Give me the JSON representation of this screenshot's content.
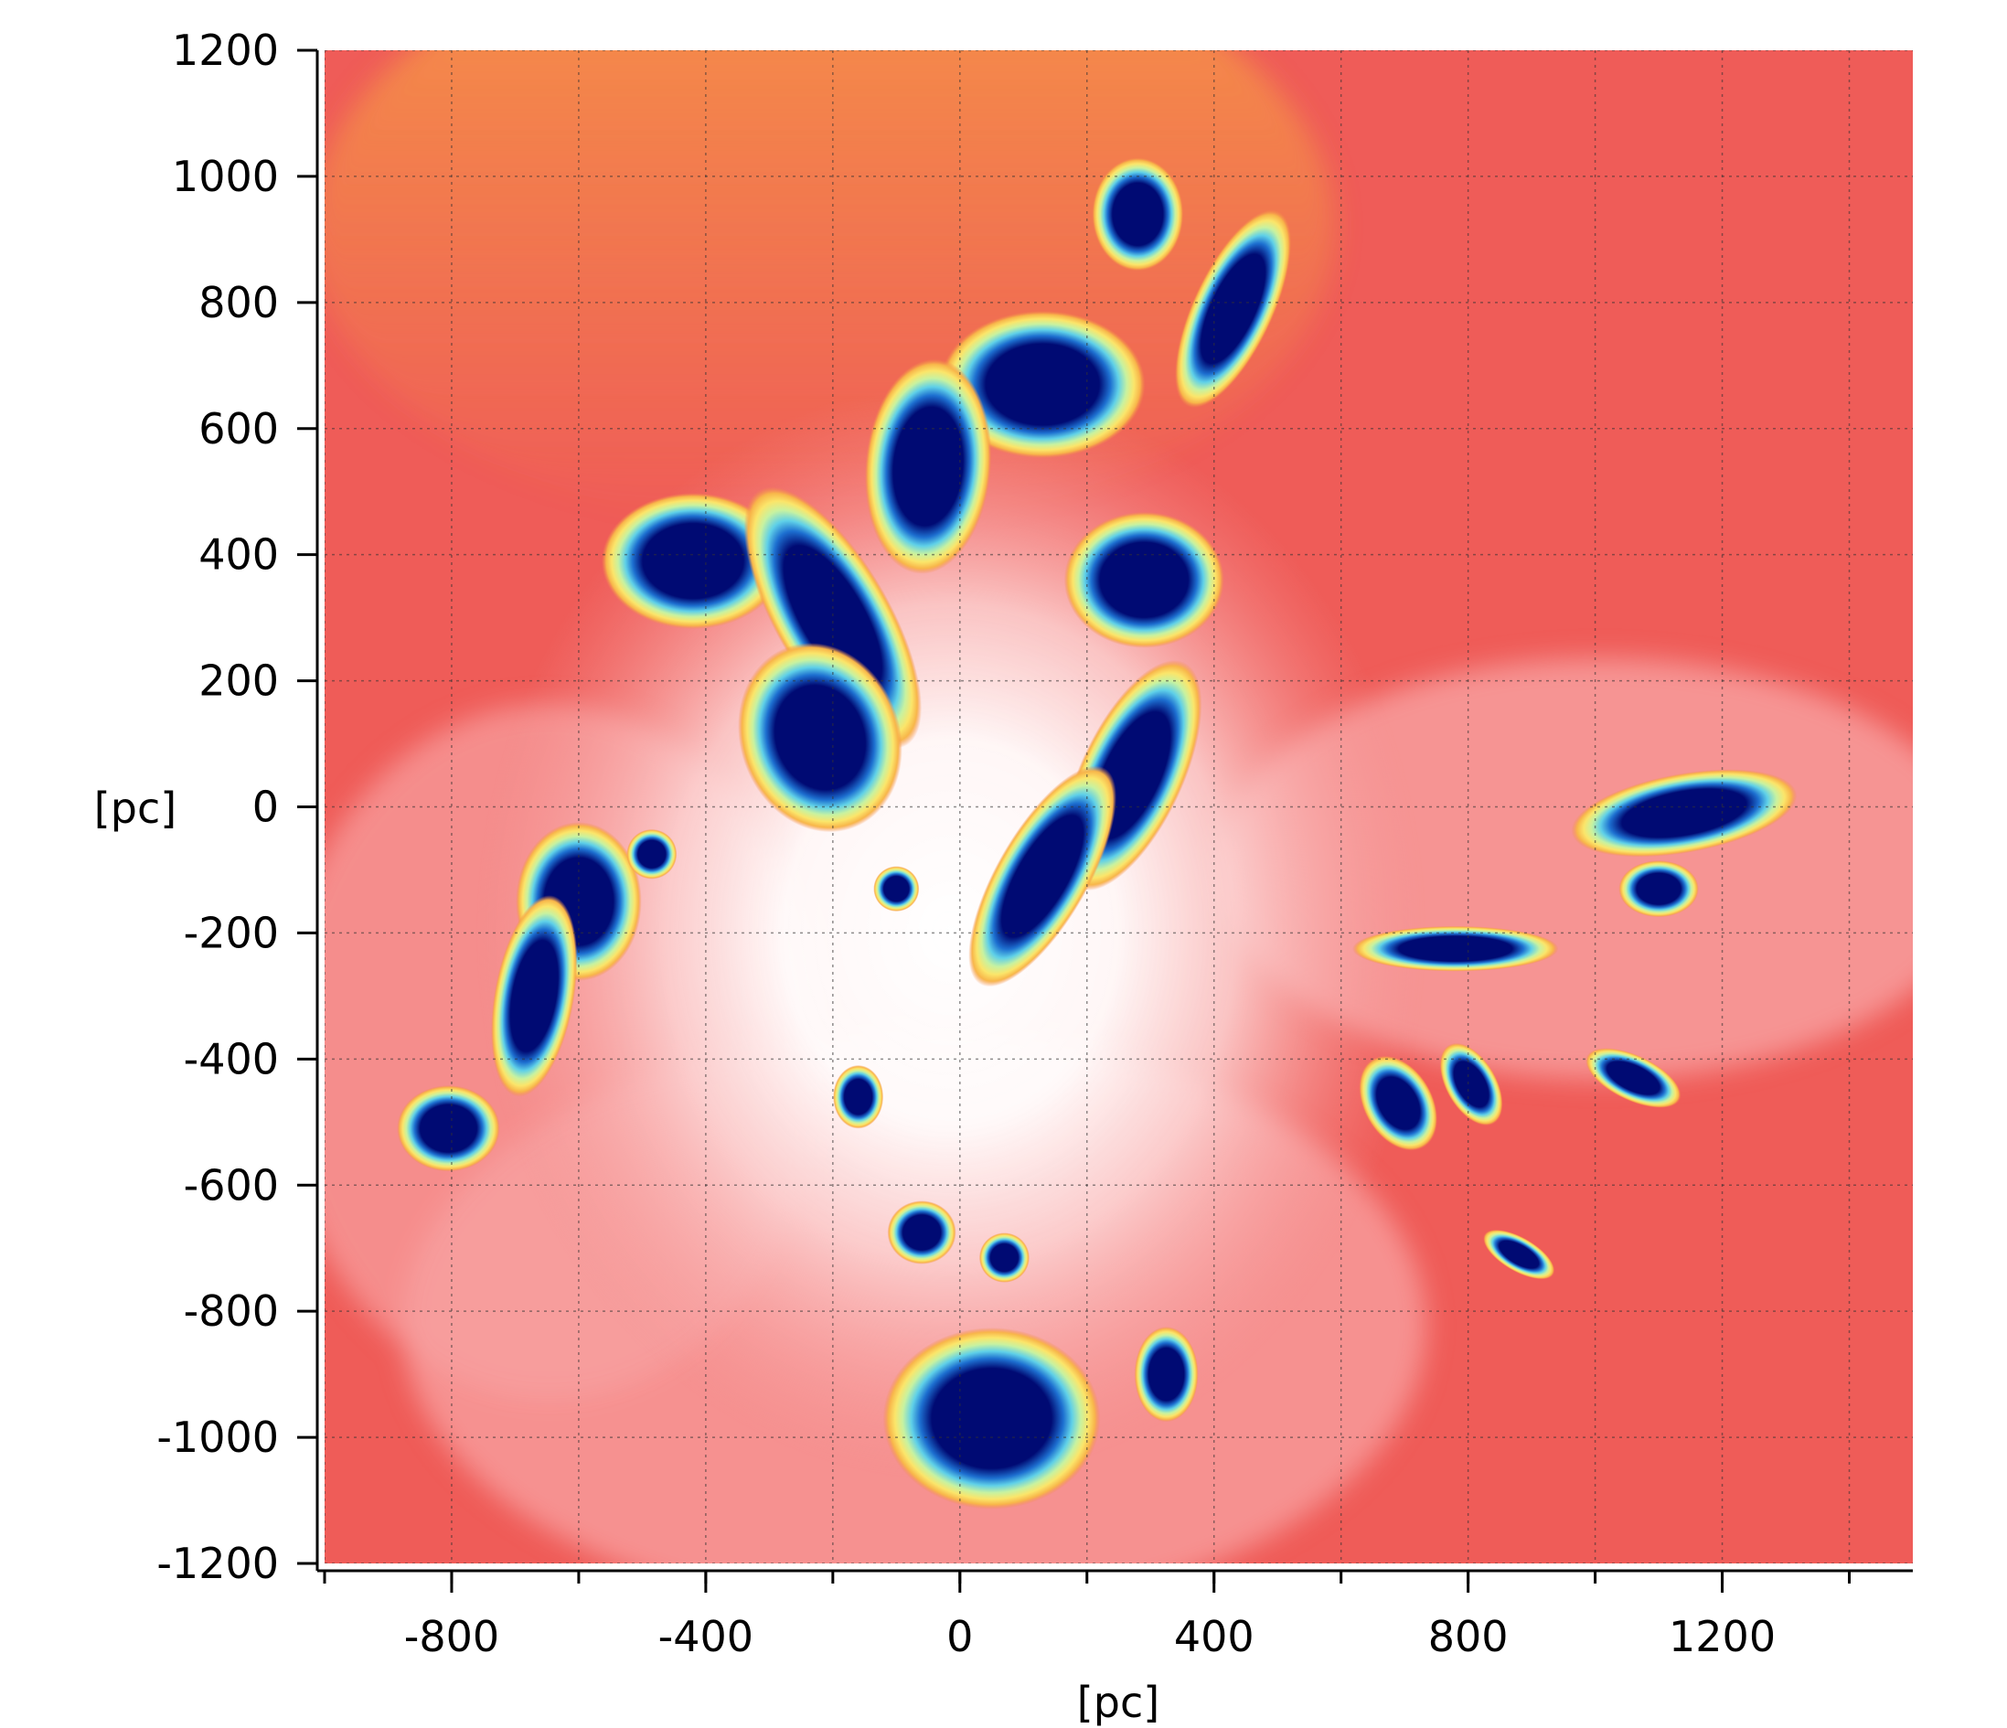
{
  "chart_data": {
    "type": "heatmap",
    "title": "",
    "xlabel": "[pc]",
    "ylabel": "[pc]",
    "xlim": [
      -1000,
      1500
    ],
    "ylim": [
      -1200,
      1200
    ],
    "x_ticks": [
      -800,
      -400,
      0,
      400,
      800,
      1200
    ],
    "y_ticks": [
      1200,
      1000,
      800,
      600,
      400,
      200,
      0,
      -200,
      -400,
      -600,
      -800,
      -1000,
      -1200
    ],
    "grid": true,
    "colormap": [
      "#ffffff",
      "#fcd2d2",
      "#f89b9b",
      "#f25a55",
      "#f28a4a",
      "#f8b64a",
      "#fbe56a",
      "#c8f2a0",
      "#5fd0e8",
      "#1d6fd0",
      "#000a73"
    ],
    "background_color": "#ef5c58",
    "dense_regions": [
      {
        "x": 280,
        "y": 940,
        "rx": 40,
        "ry": 50,
        "angle": 0
      },
      {
        "x": 430,
        "y": 790,
        "rx": 35,
        "ry": 95,
        "angle": 25
      },
      {
        "x": 130,
        "y": 670,
        "rx": 90,
        "ry": 65,
        "angle": 0
      },
      {
        "x": -50,
        "y": 540,
        "rx": 55,
        "ry": 95,
        "angle": 5
      },
      {
        "x": -420,
        "y": 390,
        "rx": 80,
        "ry": 60,
        "angle": 0
      },
      {
        "x": -200,
        "y": 300,
        "rx": 50,
        "ry": 130,
        "angle": -30
      },
      {
        "x": -220,
        "y": 110,
        "rx": 70,
        "ry": 85,
        "angle": -20
      },
      {
        "x": 290,
        "y": 360,
        "rx": 70,
        "ry": 60,
        "angle": 0
      },
      {
        "x": 270,
        "y": 50,
        "rx": 45,
        "ry": 110,
        "angle": 25
      },
      {
        "x": 130,
        "y": -110,
        "rx": 40,
        "ry": 110,
        "angle": 30
      },
      {
        "x": -600,
        "y": -150,
        "rx": 55,
        "ry": 70,
        "angle": 0
      },
      {
        "x": -670,
        "y": -300,
        "rx": 35,
        "ry": 90,
        "angle": 10
      },
      {
        "x": -485,
        "y": -75,
        "rx": 22,
        "ry": 22,
        "angle": 0
      },
      {
        "x": 1140,
        "y": -10,
        "rx": 100,
        "ry": 35,
        "angle": -10
      },
      {
        "x": 1100,
        "y": -130,
        "rx": 35,
        "ry": 25,
        "angle": 0
      },
      {
        "x": 780,
        "y": -225,
        "rx": 90,
        "ry": 20,
        "angle": 0
      },
      {
        "x": -805,
        "y": -510,
        "rx": 45,
        "ry": 38,
        "angle": 0
      },
      {
        "x": 50,
        "y": -970,
        "rx": 95,
        "ry": 80,
        "angle": 0
      },
      {
        "x": 325,
        "y": -900,
        "rx": 28,
        "ry": 42,
        "angle": 0
      },
      {
        "x": 690,
        "y": -470,
        "rx": 30,
        "ry": 45,
        "angle": -30
      },
      {
        "x": 805,
        "y": -440,
        "rx": 22,
        "ry": 40,
        "angle": -30
      },
      {
        "x": 1060,
        "y": -430,
        "rx": 45,
        "ry": 20,
        "angle": 25
      },
      {
        "x": 880,
        "y": -710,
        "rx": 35,
        "ry": 15,
        "angle": 30
      },
      {
        "x": -160,
        "y": -460,
        "rx": 22,
        "ry": 28,
        "angle": 0
      },
      {
        "x": 70,
        "y": -715,
        "rx": 22,
        "ry": 22,
        "angle": 0
      },
      {
        "x": -60,
        "y": -675,
        "rx": 30,
        "ry": 28,
        "angle": 0
      },
      {
        "x": -100,
        "y": -130,
        "rx": 20,
        "ry": 20,
        "angle": 0
      }
    ]
  },
  "figure": {
    "x_axis_label": "[pc]",
    "y_axis_label": "[pc]"
  }
}
